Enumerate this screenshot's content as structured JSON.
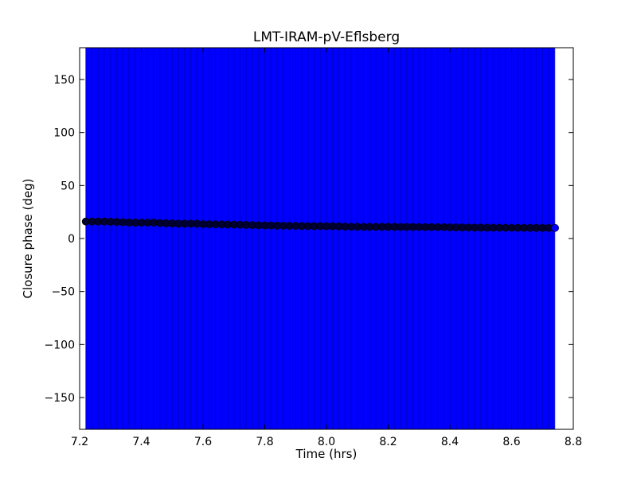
{
  "chart_data": {
    "type": "scatter",
    "title": "LMT-IRAM-pV-Eflsberg",
    "xlabel": "Time (hrs)",
    "ylabel": "Closure phase (deg)",
    "xlim": [
      7.2,
      8.8
    ],
    "ylim": [
      -180,
      180
    ],
    "xticks": [
      7.2,
      7.4,
      7.6,
      7.8,
      8.0,
      8.2,
      8.4,
      8.6,
      8.8
    ],
    "xtick_labels": [
      "7.2",
      "7.4",
      "7.6",
      "7.8",
      "8.0",
      "8.2",
      "8.4",
      "8.6",
      "8.8"
    ],
    "yticks": [
      -150,
      -100,
      -50,
      0,
      50,
      100,
      150
    ],
    "ytick_labels": [
      "−150",
      "−100",
      "−50",
      "0",
      "50",
      "100",
      "150"
    ],
    "grid": false,
    "legend": "none",
    "error_band": {
      "x_start": 7.22,
      "x_end": 8.74,
      "y_low": -180,
      "y_high": 180,
      "color": "#0000ff",
      "description": "dense vertical error bars spanning full y range"
    },
    "series": [
      {
        "marker_color": "#000033",
        "marker": "circle",
        "x": [
          7.22,
          7.24,
          7.26,
          7.28,
          7.3,
          7.32,
          7.34,
          7.36,
          7.38,
          7.4,
          7.42,
          7.44,
          7.46,
          7.48,
          7.5,
          7.52,
          7.54,
          7.56,
          7.58,
          7.6,
          7.62,
          7.64,
          7.66,
          7.68,
          7.7,
          7.72,
          7.74,
          7.76,
          7.78,
          7.8,
          7.82,
          7.84,
          7.86,
          7.88,
          7.9,
          7.92,
          7.94,
          7.96,
          7.98,
          8.0,
          8.02,
          8.04,
          8.06,
          8.08,
          8.1,
          8.12,
          8.14,
          8.16,
          8.18,
          8.2,
          8.22,
          8.24,
          8.26,
          8.28,
          8.3,
          8.32,
          8.34,
          8.36,
          8.38,
          8.4,
          8.42,
          8.44,
          8.46,
          8.48,
          8.5,
          8.52,
          8.54,
          8.56,
          8.58,
          8.6,
          8.62,
          8.64,
          8.66,
          8.68,
          8.7,
          8.72,
          8.74
        ],
        "y": [
          16,
          16,
          16,
          16,
          15.8,
          15.6,
          15.4,
          15.2,
          15.0,
          15.0,
          15.0,
          15.0,
          14.6,
          14.4,
          14.2,
          14.0,
          14.0,
          14.0,
          14.0,
          13.6,
          13.5,
          13.4,
          13.3,
          13.2,
          13.1,
          13.0,
          12.8,
          12.6,
          12.5,
          12.4,
          12.3,
          12.2,
          12.1,
          12.0,
          11.9,
          11.8,
          11.8,
          11.7,
          11.7,
          11.6,
          11.6,
          11.5,
          11.2,
          11.1,
          11.1,
          11.0,
          11.0,
          11.0,
          11.0,
          11.0,
          11.0,
          10.9,
          10.9,
          10.9,
          10.9,
          10.8,
          10.8,
          10.8,
          10.8,
          10.6,
          10.5,
          10.4,
          10.4,
          10.3,
          10.3,
          10.2,
          10.2,
          10.2,
          10.1,
          10.1,
          10.1,
          10.0,
          10.0,
          10.0,
          10.0,
          10.0,
          10.0
        ]
      }
    ]
  }
}
